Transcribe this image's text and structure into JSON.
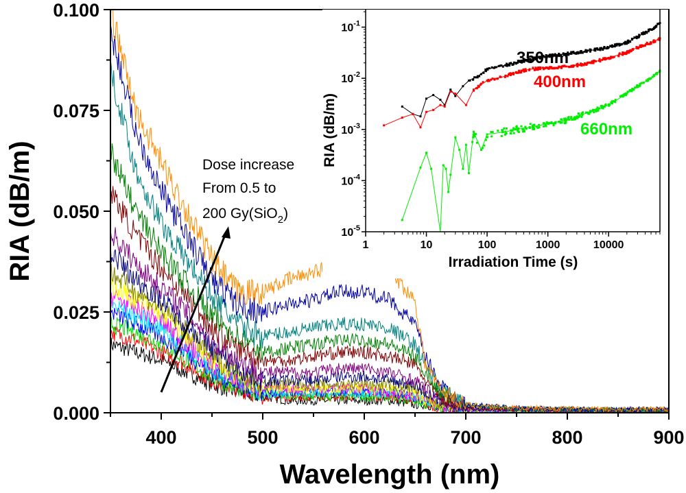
{
  "chart_data": [
    {
      "type": "line",
      "xlabel": "Wavelength (nm)",
      "ylabel": "RIA (dB/m)",
      "xlim": [
        350,
        900
      ],
      "ylim": [
        0,
        0.1
      ],
      "xticks": [
        "400",
        "500",
        "600",
        "700",
        "800",
        "900"
      ],
      "yticks": [
        "0.000",
        "0.025",
        "0.050",
        "0.075",
        "0.100"
      ],
      "grid": false,
      "annotation": {
        "line1": "Dose increase",
        "line2": "From 0.5 to",
        "line3_main": "200 Gy(SiO",
        "line3_sub": "2",
        "line3_end": ")"
      },
      "x": [
        350,
        375,
        400,
        425,
        450,
        475,
        500,
        525,
        550,
        575,
        600,
        625,
        650,
        660,
        675,
        700,
        750,
        800,
        850,
        900
      ],
      "series": [
        {
          "color": "#000000",
          "values": [
            0.017,
            0.015,
            0.013,
            0.01,
            0.007,
            0.005,
            0.004,
            0.003,
            0.003,
            0.003,
            0.003,
            0.003,
            0.002,
            0.002,
            0.001,
            0.0005,
            0.0005,
            0.0004,
            0.0004,
            0.0004
          ]
        },
        {
          "color": "#ff0000",
          "values": [
            0.02,
            0.018,
            0.015,
            0.012,
            0.008,
            0.006,
            0.004,
            0.004,
            0.004,
            0.004,
            0.004,
            0.004,
            0.003,
            0.002,
            0.001,
            0.0006,
            0.0005,
            0.0005,
            0.0004,
            0.0004
          ]
        },
        {
          "color": "#00dd00",
          "values": [
            0.022,
            0.02,
            0.017,
            0.013,
            0.009,
            0.006,
            0.005,
            0.004,
            0.004,
            0.004,
            0.004,
            0.004,
            0.003,
            0.002,
            0.0012,
            0.0006,
            0.0005,
            0.0005,
            0.0004,
            0.0005
          ]
        },
        {
          "color": "#0000ff",
          "values": [
            0.025,
            0.022,
            0.019,
            0.015,
            0.01,
            0.007,
            0.005,
            0.005,
            0.005,
            0.005,
            0.005,
            0.005,
            0.004,
            0.003,
            0.0015,
            0.0007,
            0.0006,
            0.0005,
            0.0005,
            0.0005
          ]
        },
        {
          "color": "#00e5ff",
          "values": [
            0.027,
            0.024,
            0.021,
            0.016,
            0.011,
            0.008,
            0.005,
            0.005,
            0.005,
            0.005,
            0.005,
            0.005,
            0.004,
            0.003,
            0.0015,
            0.0007,
            0.0006,
            0.0005,
            0.0005,
            0.0005
          ]
        },
        {
          "color": "#ff00ff",
          "values": [
            0.029,
            0.026,
            0.023,
            0.017,
            0.012,
            0.008,
            0.006,
            0.006,
            0.006,
            0.006,
            0.006,
            0.005,
            0.004,
            0.003,
            0.0017,
            0.0008,
            0.0006,
            0.0005,
            0.0005,
            0.0005
          ]
        },
        {
          "color": "#ffff00",
          "values": [
            0.032,
            0.028,
            0.025,
            0.019,
            0.013,
            0.009,
            0.006,
            0.006,
            0.006,
            0.006,
            0.006,
            0.006,
            0.005,
            0.003,
            0.002,
            0.001,
            0.0007,
            0.0006,
            0.0005,
            0.0006
          ]
        },
        {
          "color": "#808000",
          "values": [
            0.035,
            0.03,
            0.026,
            0.02,
            0.014,
            0.01,
            0.007,
            0.007,
            0.007,
            0.007,
            0.007,
            0.007,
            0.006,
            0.004,
            0.002,
            0.001,
            0.0007,
            0.0006,
            0.0005,
            0.0006
          ]
        },
        {
          "color": "#000080",
          "values": [
            0.04,
            0.033,
            0.028,
            0.022,
            0.016,
            0.011,
            0.008,
            0.008,
            0.008,
            0.009,
            0.009,
            0.008,
            0.007,
            0.005,
            0.003,
            0.001,
            0.0008,
            0.0006,
            0.0006,
            0.0006
          ]
        },
        {
          "color": "#800080",
          "values": [
            0.045,
            0.037,
            0.031,
            0.025,
            0.018,
            0.013,
            0.01,
            0.01,
            0.01,
            0.011,
            0.011,
            0.01,
            0.008,
            0.006,
            0.003,
            0.001,
            0.0008,
            0.0007,
            0.0006,
            0.0006
          ]
        },
        {
          "color": "#800000",
          "values": [
            0.055,
            0.044,
            0.036,
            0.029,
            0.021,
            0.016,
            0.013,
            0.013,
            0.014,
            0.015,
            0.015,
            0.014,
            0.012,
            0.008,
            0.004,
            0.0015,
            0.0009,
            0.0007,
            0.0006,
            0.0007
          ]
        },
        {
          "color": "#008000",
          "values": [
            0.065,
            0.05,
            0.04,
            0.032,
            0.024,
            0.019,
            0.015,
            0.016,
            0.017,
            0.018,
            0.018,
            0.017,
            0.014,
            0.01,
            0.005,
            0.002,
            0.001,
            0.0008,
            0.0007,
            0.0007
          ]
        },
        {
          "color": "#008080",
          "values": [
            0.085,
            0.06,
            0.047,
            0.038,
            0.029,
            0.022,
            0.019,
            0.02,
            0.021,
            0.022,
            0.022,
            0.021,
            0.017,
            0.012,
            0.006,
            0.002,
            0.001,
            0.0008,
            0.0007,
            0.0008
          ]
        },
        {
          "color": "#0000a0",
          "values": [
            0.095,
            0.07,
            0.055,
            0.044,
            0.033,
            0.027,
            0.025,
            0.027,
            0.028,
            0.03,
            0.03,
            0.028,
            0.022,
            0.014,
            0.007,
            0.002,
            0.0012,
            0.0009,
            0.0008,
            0.0009
          ]
        },
        {
          "color": "#ff8c00",
          "values": [
            0.1,
            0.075,
            0.062,
            0.05,
            0.038,
            0.03,
            0.03,
            0.033,
            0.035,
            0.037,
            0.038,
            0.035,
            0.028,
            0.012,
            0.006,
            0.002,
            0.0012,
            0.001,
            0.0008,
            0.001
          ]
        }
      ]
    },
    {
      "type": "scatter",
      "xlabel": "Irradiation Time  (s)",
      "ylabel": "RIA (dB/m)",
      "xscale": "log",
      "yscale": "log",
      "xlim": [
        1,
        70000
      ],
      "ylim": [
        1e-05,
        0.22
      ],
      "xticks": [
        "1",
        "10",
        "100",
        "1000",
        "10000"
      ],
      "yticks": [
        {
          "base": "10",
          "exp": "-5"
        },
        {
          "base": "10",
          "exp": "-4"
        },
        {
          "base": "10",
          "exp": "-3"
        },
        {
          "base": "10",
          "exp": "-2"
        },
        {
          "base": "10",
          "exp": "-1"
        }
      ],
      "series": [
        {
          "name": "350nm",
          "color": "#000000",
          "x": [
            4,
            6,
            8,
            10,
            13,
            17,
            20,
            25,
            30,
            40,
            50,
            70,
            100,
            200,
            300,
            500,
            1000,
            2000,
            3000,
            5000,
            10000,
            20000,
            30000,
            50000,
            70000
          ],
          "y": [
            0.0028,
            0.002,
            0.0018,
            0.004,
            0.0047,
            0.0038,
            0.003,
            0.006,
            0.0045,
            0.007,
            0.009,
            0.011,
            0.015,
            0.018,
            0.02,
            0.023,
            0.027,
            0.03,
            0.032,
            0.035,
            0.04,
            0.05,
            0.065,
            0.09,
            0.12
          ]
        },
        {
          "name": "400nm",
          "color": "#ff0000",
          "x": [
            2,
            4,
            6,
            8,
            10,
            13,
            17,
            20,
            25,
            30,
            45,
            60,
            100,
            200,
            300,
            500,
            1000,
            2000,
            3000,
            5000,
            10000,
            20000,
            30000,
            50000,
            70000
          ],
          "y": [
            0.0012,
            0.0017,
            0.002,
            0.0011,
            0.0022,
            0.0024,
            0.003,
            0.0028,
            0.0055,
            0.005,
            0.003,
            0.006,
            0.009,
            0.011,
            0.013,
            0.015,
            0.016,
            0.017,
            0.018,
            0.02,
            0.025,
            0.032,
            0.04,
            0.05,
            0.06
          ]
        },
        {
          "name": "660nm",
          "color": "#00ee00",
          "x": [
            4,
            8,
            10,
            12,
            17,
            19,
            21,
            23,
            25,
            30,
            35,
            40,
            45,
            50,
            60,
            80,
            100,
            200,
            300,
            500,
            1000,
            2000,
            3000,
            5000,
            10000,
            20000,
            30000,
            50000,
            70000
          ],
          "y": [
            1.7e-05,
            0.00018,
            0.00035,
            0.00017,
            1e-05,
            0.0002,
            0.00017,
            6e-05,
            0.00013,
            0.0007,
            0.0004,
            0.00017,
            0.0005,
            0.00014,
            0.0009,
            0.0004,
            0.0008,
            0.0009,
            0.001,
            0.0011,
            0.0013,
            0.0015,
            0.0018,
            0.0022,
            0.003,
            0.005,
            0.007,
            0.01,
            0.014
          ]
        }
      ]
    }
  ]
}
